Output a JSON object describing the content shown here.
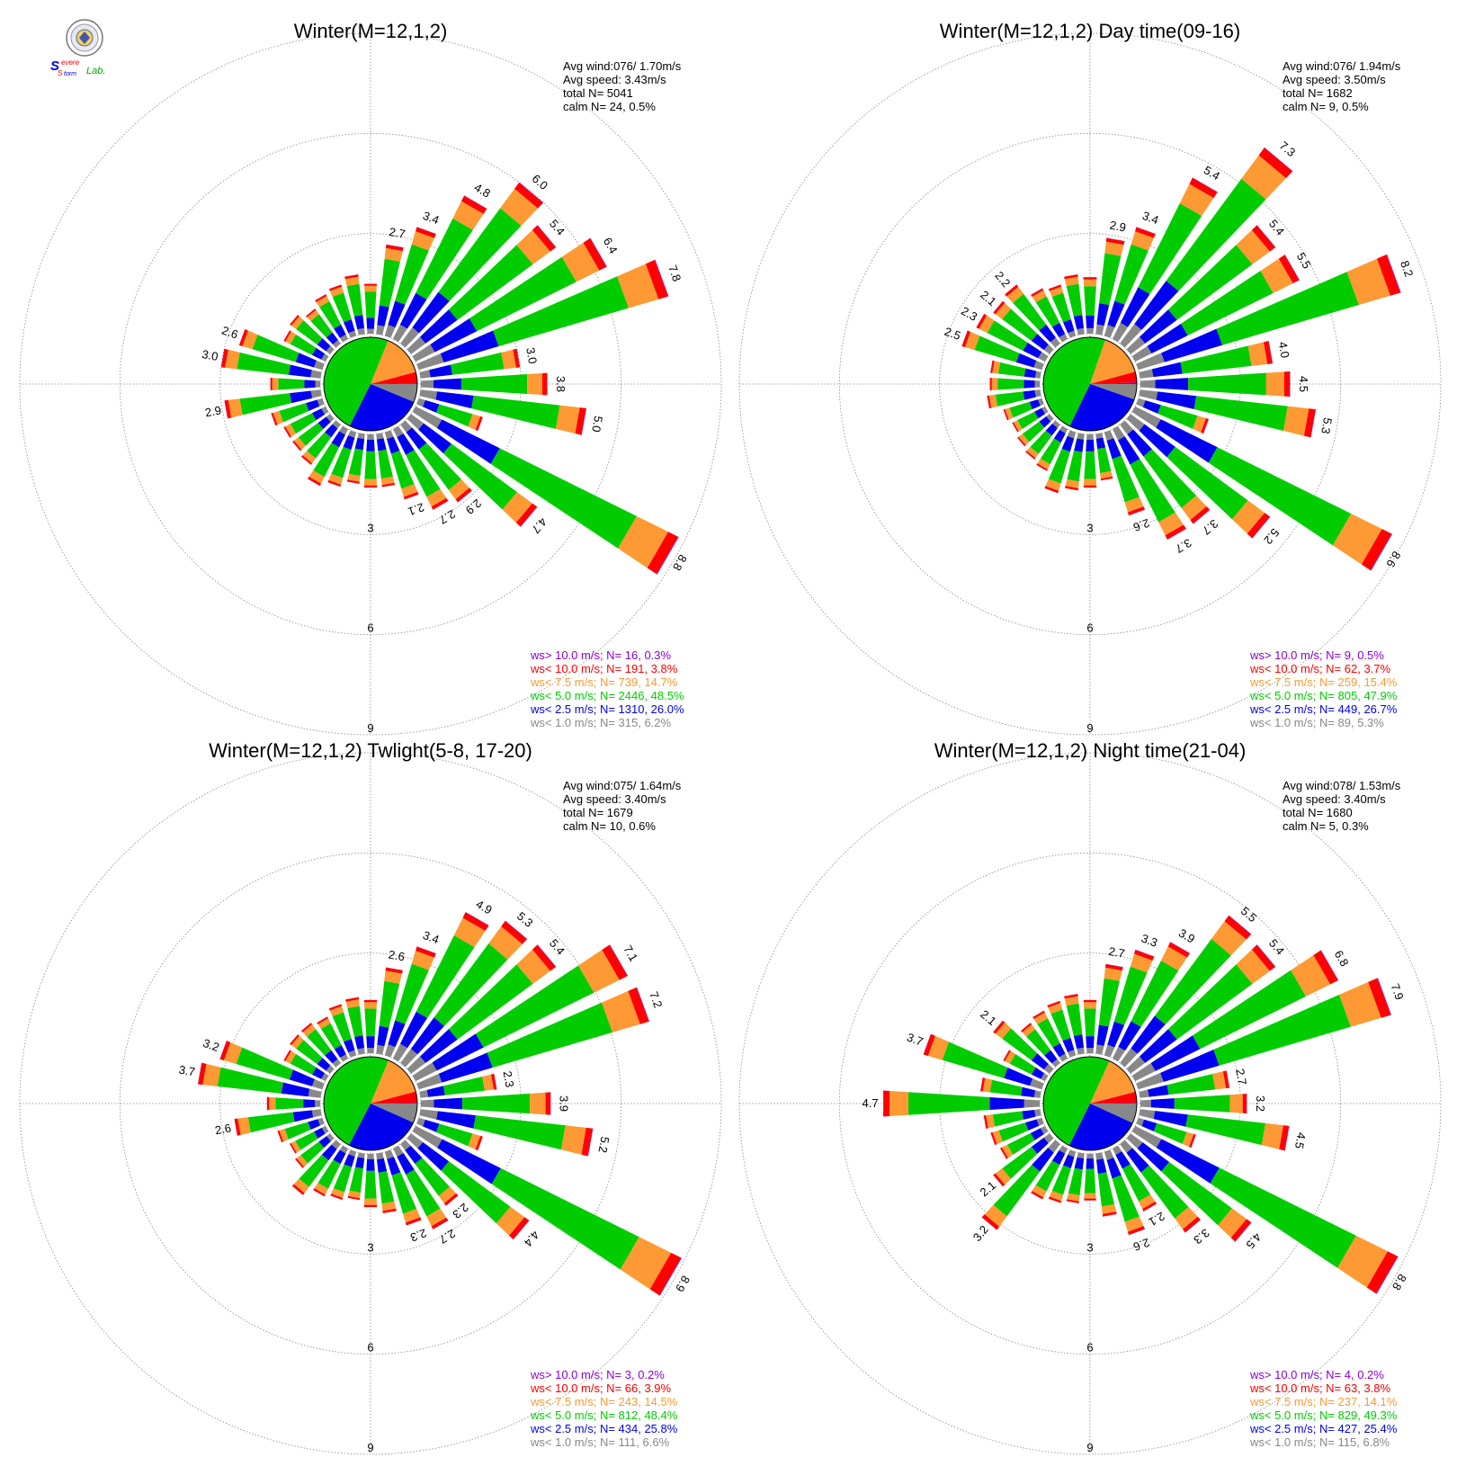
{
  "colors": {
    "purple": "#8b00d9",
    "red": "#ff0000",
    "orange": "#ff9933",
    "green": "#00cc00",
    "blue": "#0000ee",
    "gray": "#888888",
    "grid": "#888888",
    "text": "#000000"
  },
  "logo": {
    "icon": "severe-storm-lab-seal-icon",
    "text_s1": "S",
    "text_evere": "evere",
    "text_s2": "S",
    "text_torm": "torm",
    "text_lab": "Lab."
  },
  "chart_data": [
    {
      "type": "polar-bar",
      "title": "Winter(M=12,1,2)",
      "stats": {
        "avg_wind": "Avg wind:076/ 1.70m/s",
        "avg_speed": "Avg speed: 3.43m/s",
        "total": "total N=      5041",
        "calm": "calm N=    24,   0.5%"
      },
      "rings": [
        3,
        6,
        9
      ],
      "ring_labels": [
        "3",
        "6",
        "9"
      ],
      "pie": [
        6.2,
        26.0,
        48.5,
        14.7,
        3.8,
        0.3
      ],
      "legend": [
        {
          "text": "ws> 10.0 m/s; N=    16,  0.3%",
          "color": "#8b00d9"
        },
        {
          "text": "ws< 10.0 m/s; N=   191,  3.8%",
          "color": "#ff0000"
        },
        {
          "text": "ws<  7.5 m/s; N=   739, 14.7%",
          "color": "#ff9933"
        },
        {
          "text": "ws<  5.0 m/s; N=  2446, 48.5%",
          "color": "#00cc00"
        },
        {
          "text": "ws<  2.5 m/s; N=  1310, 26.0%",
          "color": "#0000ee"
        },
        {
          "text": "ws<  1.0 m/s; N=   315,  6.2%",
          "color": "#888888"
        }
      ],
      "bars": [
        {
          "dir": 10,
          "total": 2.7,
          "label": "2.7"
        },
        {
          "dir": 20,
          "total": 3.4,
          "label": "3.4"
        },
        {
          "dir": 30,
          "total": 4.8,
          "label": "4.8"
        },
        {
          "dir": 40,
          "total": 6.0,
          "label": "6.0"
        },
        {
          "dir": 50,
          "total": 5.4,
          "label": "5.4"
        },
        {
          "dir": 60,
          "total": 6.4,
          "label": "6.4"
        },
        {
          "dir": 70,
          "total": 7.8,
          "label": "7.8"
        },
        {
          "dir": 80,
          "total": 3.0,
          "label": "3.0"
        },
        {
          "dir": 90,
          "total": 3.8,
          "label": "3.8"
        },
        {
          "dir": 100,
          "total": 5.0,
          "label": "5.0"
        },
        {
          "dir": 110,
          "total": 2.0
        },
        {
          "dir": 120,
          "total": 8.8,
          "label": "8.8"
        },
        {
          "dir": 130,
          "total": 4.7,
          "label": "4.7"
        },
        {
          "dir": 140,
          "total": 2.9,
          "label": "2.9"
        },
        {
          "dir": 150,
          "total": 2.7,
          "label": "2.7"
        },
        {
          "dir": 160,
          "total": 2.1,
          "label": "2.1"
        },
        {
          "dir": 170,
          "total": 1.6
        },
        {
          "dir": 180,
          "total": 1.6
        },
        {
          "dir": 190,
          "total": 1.5
        },
        {
          "dir": 200,
          "total": 1.7
        },
        {
          "dir": 210,
          "total": 1.9
        },
        {
          "dir": 220,
          "total": 1.5
        },
        {
          "dir": 230,
          "total": 1.4
        },
        {
          "dir": 240,
          "total": 1.4
        },
        {
          "dir": 250,
          "total": 1.6
        },
        {
          "dir": 260,
          "total": 2.9,
          "label": "2.9"
        },
        {
          "dir": 270,
          "total": 1.5
        },
        {
          "dir": 280,
          "total": 3.0,
          "label": "3.0"
        },
        {
          "dir": 290,
          "total": 2.6,
          "label": "2.6"
        },
        {
          "dir": 300,
          "total": 1.4
        },
        {
          "dir": 310,
          "total": 1.5
        },
        {
          "dir": 320,
          "total": 1.3
        },
        {
          "dir": 330,
          "total": 1.5
        },
        {
          "dir": 340,
          "total": 1.6
        },
        {
          "dir": 350,
          "total": 1.8
        },
        {
          "dir": 360,
          "total": 1.5
        }
      ]
    },
    {
      "type": "polar-bar",
      "title": "Winter(M=12,1,2) Day time(09-16)",
      "stats": {
        "avg_wind": "Avg wind:076/ 1.94m/s",
        "avg_speed": "Avg speed: 3.50m/s",
        "total": "total N=      1682",
        "calm": "calm N=     9,   0.5%"
      },
      "rings": [
        3,
        6,
        9
      ],
      "ring_labels": [
        "3",
        "6",
        "9"
      ],
      "pie": [
        5.3,
        26.7,
        47.9,
        15.4,
        3.7,
        0.5
      ],
      "legend": [
        {
          "text": "ws> 10.0 m/s; N=     9,  0.5%",
          "color": "#8b00d9"
        },
        {
          "text": "ws< 10.0 m/s; N=    62,  3.7%",
          "color": "#ff0000"
        },
        {
          "text": "ws<  7.5 m/s; N=   259, 15.4%",
          "color": "#ff9933"
        },
        {
          "text": "ws<  5.0 m/s; N=   805, 47.9%",
          "color": "#00cc00"
        },
        {
          "text": "ws<  2.5 m/s; N=   449, 26.7%",
          "color": "#0000ee"
        },
        {
          "text": "ws<  1.0 m/s; N=    89,  5.3%",
          "color": "#888888"
        }
      ],
      "bars": [
        {
          "dir": 10,
          "total": 2.9,
          "label": "2.9"
        },
        {
          "dir": 20,
          "total": 3.4,
          "label": "3.4"
        },
        {
          "dir": 30,
          "total": 5.4,
          "label": "5.4"
        },
        {
          "dir": 40,
          "total": 7.3,
          "label": "7.3"
        },
        {
          "dir": 50,
          "total": 5.4,
          "label": "5.4"
        },
        {
          "dir": 60,
          "total": 5.5,
          "label": "5.5"
        },
        {
          "dir": 70,
          "total": 8.2,
          "label": "8.2"
        },
        {
          "dir": 80,
          "total": 4.0,
          "label": "4.0"
        },
        {
          "dir": 90,
          "total": 4.5,
          "label": "4.5"
        },
        {
          "dir": 100,
          "total": 5.3,
          "label": "5.3"
        },
        {
          "dir": 110,
          "total": 2.2
        },
        {
          "dir": 120,
          "total": 8.6,
          "label": "8.6"
        },
        {
          "dir": 130,
          "total": 5.2,
          "label": "5.2"
        },
        {
          "dir": 140,
          "total": 3.7,
          "label": "3.7"
        },
        {
          "dir": 150,
          "total": 3.7,
          "label": "3.7"
        },
        {
          "dir": 160,
          "total": 2.6,
          "label": "2.6"
        },
        {
          "dir": 170,
          "total": 1.4
        },
        {
          "dir": 180,
          "total": 1.6
        },
        {
          "dir": 190,
          "total": 1.7
        },
        {
          "dir": 200,
          "total": 1.9
        },
        {
          "dir": 210,
          "total": 1.4
        },
        {
          "dir": 220,
          "total": 1.3
        },
        {
          "dir": 230,
          "total": 1.2
        },
        {
          "dir": 240,
          "total": 1.1
        },
        {
          "dir": 250,
          "total": 1.2
        },
        {
          "dir": 260,
          "total": 1.6
        },
        {
          "dir": 270,
          "total": 1.5
        },
        {
          "dir": 280,
          "total": 1.5
        },
        {
          "dir": 290,
          "total": 2.5,
          "label": "2.5"
        },
        {
          "dir": 300,
          "total": 2.3,
          "label": "2.3"
        },
        {
          "dir": 310,
          "total": 2.1,
          "label": "2.1"
        },
        {
          "dir": 320,
          "total": 2.2,
          "label": "2.2"
        },
        {
          "dir": 330,
          "total": 1.7
        },
        {
          "dir": 340,
          "total": 1.6
        },
        {
          "dir": 350,
          "total": 1.8
        },
        {
          "dir": 360,
          "total": 1.7
        }
      ]
    },
    {
      "type": "polar-bar",
      "title": "Winter(M=12,1,2) Twlight(5-8, 17-20)",
      "stats": {
        "avg_wind": "Avg wind:075/ 1.64m/s",
        "avg_speed": "Avg speed: 3.40m/s",
        "total": "total N=      1679",
        "calm": "calm N=    10,   0.6%"
      },
      "rings": [
        3,
        6,
        9
      ],
      "ring_labels": [
        "3",
        "6",
        "9"
      ],
      "pie": [
        6.6,
        25.8,
        48.4,
        14.5,
        3.9,
        0.2
      ],
      "legend": [
        {
          "text": "ws> 10.0 m/s; N=     3,  0.2%",
          "color": "#8b00d9"
        },
        {
          "text": "ws< 10.0 m/s; N=    66,  3.9%",
          "color": "#ff0000"
        },
        {
          "text": "ws<  7.5 m/s; N=   243, 14.5%",
          "color": "#ff9933"
        },
        {
          "text": "ws<  5.0 m/s; N=   812, 48.4%",
          "color": "#00cc00"
        },
        {
          "text": "ws<  2.5 m/s; N=   434, 25.8%",
          "color": "#0000ee"
        },
        {
          "text": "ws<  1.0 m/s; N=   111,  6.6%",
          "color": "#888888"
        }
      ],
      "bars": [
        {
          "dir": 10,
          "total": 2.6,
          "label": "2.6"
        },
        {
          "dir": 20,
          "total": 3.4,
          "label": "3.4"
        },
        {
          "dir": 30,
          "total": 4.9,
          "label": "4.9"
        },
        {
          "dir": 40,
          "total": 5.3,
          "label": "5.3"
        },
        {
          "dir": 50,
          "total": 5.4,
          "label": "5.4"
        },
        {
          "dir": 60,
          "total": 7.1,
          "label": "7.1"
        },
        {
          "dir": 70,
          "total": 7.2,
          "label": "7.2"
        },
        {
          "dir": 80,
          "total": 2.3,
          "label": "2.3"
        },
        {
          "dir": 90,
          "total": 3.9,
          "label": "3.9"
        },
        {
          "dir": 100,
          "total": 5.2,
          "label": "5.2"
        },
        {
          "dir": 110,
          "total": 2.0
        },
        {
          "dir": 120,
          "total": 8.9,
          "label": "8.9"
        },
        {
          "dir": 130,
          "total": 4.4,
          "label": "4.4"
        },
        {
          "dir": 140,
          "total": 2.3,
          "label": "2.3"
        },
        {
          "dir": 150,
          "total": 2.7,
          "label": "2.7"
        },
        {
          "dir": 160,
          "total": 2.3,
          "label": "2.3"
        },
        {
          "dir": 170,
          "total": 1.8
        },
        {
          "dir": 180,
          "total": 1.6
        },
        {
          "dir": 190,
          "total": 1.4
        },
        {
          "dir": 200,
          "total": 1.5
        },
        {
          "dir": 210,
          "total": 1.6
        },
        {
          "dir": 220,
          "total": 1.9
        },
        {
          "dir": 230,
          "total": 1.3
        },
        {
          "dir": 240,
          "total": 1.2
        },
        {
          "dir": 250,
          "total": 1.4
        },
        {
          "dir": 260,
          "total": 2.6,
          "label": "2.6"
        },
        {
          "dir": 270,
          "total": 1.6
        },
        {
          "dir": 280,
          "total": 3.7,
          "label": "3.7"
        },
        {
          "dir": 290,
          "total": 3.2,
          "label": "3.2"
        },
        {
          "dir": 300,
          "total": 1.4
        },
        {
          "dir": 310,
          "total": 1.5
        },
        {
          "dir": 320,
          "total": 1.5
        },
        {
          "dir": 330,
          "total": 1.4
        },
        {
          "dir": 340,
          "total": 1.6
        },
        {
          "dir": 350,
          "total": 1.7
        },
        {
          "dir": 360,
          "total": 1.6
        }
      ]
    },
    {
      "type": "polar-bar",
      "title": "Winter(M=12,1,2) Night time(21-04)",
      "stats": {
        "avg_wind": "Avg wind:078/ 1.53m/s",
        "avg_speed": "Avg speed: 3.40m/s",
        "total": "total N=      1680",
        "calm": "calm N=     5,   0.3%"
      },
      "rings": [
        3,
        6,
        9
      ],
      "ring_labels": [
        "3",
        "6",
        "9"
      ],
      "pie": [
        6.8,
        25.4,
        49.3,
        14.1,
        3.8,
        0.2
      ],
      "legend": [
        {
          "text": "ws> 10.0 m/s; N=     4,  0.2%",
          "color": "#8b00d9"
        },
        {
          "text": "ws< 10.0 m/s; N=    63,  3.8%",
          "color": "#ff0000"
        },
        {
          "text": "ws<  7.5 m/s; N=   237, 14.1%",
          "color": "#ff9933"
        },
        {
          "text": "ws<  5.0 m/s; N=   829, 49.3%",
          "color": "#00cc00"
        },
        {
          "text": "ws<  2.5 m/s; N=   427, 25.4%",
          "color": "#0000ee"
        },
        {
          "text": "ws<  1.0 m/s; N=   115,  6.8%",
          "color": "#888888"
        }
      ],
      "bars": [
        {
          "dir": 10,
          "total": 2.7,
          "label": "2.7"
        },
        {
          "dir": 20,
          "total": 3.3,
          "label": "3.3"
        },
        {
          "dir": 30,
          "total": 3.9,
          "label": "3.9"
        },
        {
          "dir": 40,
          "total": 5.5,
          "label": "5.5"
        },
        {
          "dir": 50,
          "total": 5.4,
          "label": "5.4"
        },
        {
          "dir": 60,
          "total": 6.8,
          "label": "6.8"
        },
        {
          "dir": 70,
          "total": 7.9,
          "label": "7.9"
        },
        {
          "dir": 80,
          "total": 2.7,
          "label": "2.7"
        },
        {
          "dir": 90,
          "total": 3.2,
          "label": "3.2"
        },
        {
          "dir": 100,
          "total": 4.5,
          "label": "4.5"
        },
        {
          "dir": 110,
          "total": 1.8
        },
        {
          "dir": 120,
          "total": 8.8,
          "label": "8.8"
        },
        {
          "dir": 130,
          "total": 4.5,
          "label": "4.5"
        },
        {
          "dir": 140,
          "total": 3.3,
          "label": "3.3"
        },
        {
          "dir": 150,
          "total": 2.1,
          "label": "2.1"
        },
        {
          "dir": 160,
          "total": 2.6,
          "label": "2.6"
        },
        {
          "dir": 170,
          "total": 1.9
        },
        {
          "dir": 180,
          "total": 1.4
        },
        {
          "dir": 190,
          "total": 1.5
        },
        {
          "dir": 200,
          "total": 1.6
        },
        {
          "dir": 210,
          "total": 1.7
        },
        {
          "dir": 220,
          "total": 3.2,
          "label": "3.2"
        },
        {
          "dir": 230,
          "total": 2.1,
          "label": "2.1"
        },
        {
          "dir": 240,
          "total": 1.5
        },
        {
          "dir": 250,
          "total": 1.6
        },
        {
          "dir": 260,
          "total": 1.7
        },
        {
          "dir": 270,
          "total": 4.7,
          "label": "4.7"
        },
        {
          "dir": 280,
          "total": 1.8
        },
        {
          "dir": 290,
          "total": 3.7,
          "label": "3.7"
        },
        {
          "dir": 300,
          "total": 1.4
        },
        {
          "dir": 310,
          "total": 2.1,
          "label": "2.1"
        },
        {
          "dir": 320,
          "total": 1.5
        },
        {
          "dir": 330,
          "total": 1.6
        },
        {
          "dir": 340,
          "total": 1.7
        },
        {
          "dir": 350,
          "total": 1.8
        },
        {
          "dir": 360,
          "total": 1.6
        }
      ]
    }
  ]
}
